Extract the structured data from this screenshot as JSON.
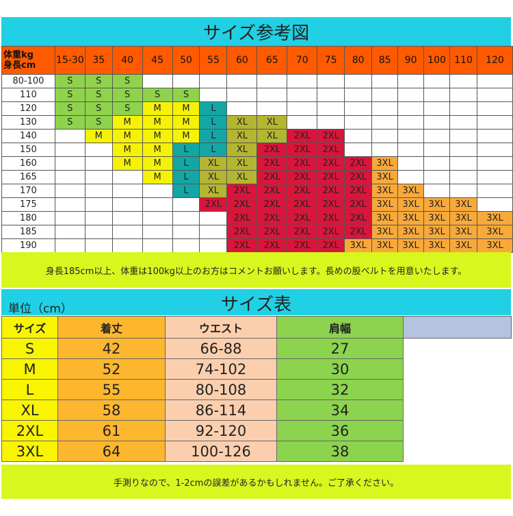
{
  "chart_title": "サイズ参考図",
  "corner": {
    "weight": "体重kg",
    "height": "身長cm"
  },
  "weights": [
    "15-30",
    "35",
    "40",
    "45",
    "50",
    "55",
    "60",
    "65",
    "70",
    "75",
    "80",
    "85",
    "90",
    "100",
    "110",
    "120"
  ],
  "rows": [
    {
      "height": "80-100",
      "cells": [
        "S",
        "S",
        "S",
        "",
        "",
        "",
        "",
        "",
        "",
        "",
        "",
        "",
        "",
        "",
        "",
        ""
      ]
    },
    {
      "height": "110",
      "cells": [
        "S",
        "S",
        "S",
        "S",
        "S",
        "",
        "",
        "",
        "",
        "",
        "",
        "",
        "",
        "",
        "",
        ""
      ]
    },
    {
      "height": "120",
      "cells": [
        "S",
        "S",
        "S",
        "M",
        "M",
        "L",
        "",
        "",
        "",
        "",
        "",
        "",
        "",
        "",
        "",
        ""
      ]
    },
    {
      "height": "130",
      "cells": [
        "S",
        "S",
        "M",
        "M",
        "M",
        "L",
        "XL",
        "XL",
        "",
        "",
        "",
        "",
        "",
        "",
        "",
        ""
      ]
    },
    {
      "height": "140",
      "cells": [
        "",
        "M",
        "M",
        "M",
        "M",
        "L",
        "XL",
        "XL",
        "2XL",
        "2XL",
        "",
        "",
        "",
        "",
        "",
        ""
      ]
    },
    {
      "height": "150",
      "cells": [
        "",
        "",
        "M",
        "M",
        "L",
        "L",
        "XL",
        "2XL",
        "2XL",
        "2XL",
        "",
        "",
        "",
        "",
        "",
        ""
      ]
    },
    {
      "height": "160",
      "cells": [
        "",
        "",
        "M",
        "M",
        "L",
        "XL",
        "XL",
        "2XL",
        "2XL",
        "2XL",
        "2XL",
        "3XL",
        "",
        "",
        "",
        ""
      ]
    },
    {
      "height": "165",
      "cells": [
        "",
        "",
        "",
        "M",
        "L",
        "XL",
        "XL",
        "2XL",
        "2XL",
        "2XL",
        "2XL",
        "3XL",
        "",
        "",
        "",
        ""
      ]
    },
    {
      "height": "170",
      "cells": [
        "",
        "",
        "",
        "",
        "L",
        "XL",
        "2XL",
        "2XL",
        "2XL",
        "2XL",
        "2XL",
        "3XL",
        "3XL",
        "",
        "",
        ""
      ]
    },
    {
      "height": "175",
      "cells": [
        "",
        "",
        "",
        "",
        "",
        "2XL",
        "2XL",
        "2XL",
        "2XL",
        "2XL",
        "2XL",
        "3XL",
        "3XL",
        "3XL",
        "3XL",
        ""
      ]
    },
    {
      "height": "180",
      "cells": [
        "",
        "",
        "",
        "",
        "",
        "",
        "2XL",
        "2XL",
        "2XL",
        "2XL",
        "2XL",
        "3XL",
        "3XL",
        "3XL",
        "3XL",
        "3XL"
      ]
    },
    {
      "height": "185",
      "cells": [
        "",
        "",
        "",
        "",
        "",
        "",
        "2XL",
        "2XL",
        "2XL",
        "2XL",
        "2XL",
        "3XL",
        "3XL",
        "3XL",
        "3XL",
        "3XL"
      ]
    },
    {
      "height": "190",
      "cells": [
        "",
        "",
        "",
        "",
        "",
        "",
        "2XL",
        "2XL",
        "2XL",
        "2XL",
        "3XL",
        "3XL",
        "3XL",
        "3XL",
        "3XL",
        "3XL"
      ]
    }
  ],
  "note1": "身長185cm以上、体重は100kg以上のお方はコメントお願いします。長めの股ベルトを用意いたします。",
  "size_table": {
    "title": "サイズ表",
    "unit": "単位（cm）",
    "headers": [
      "サイズ",
      "着丈",
      "ウエスト",
      "肩幅",
      ""
    ],
    "rows": [
      [
        "S",
        "42",
        "66-88",
        "27"
      ],
      [
        "M",
        "52",
        "74-102",
        "30"
      ],
      [
        "L",
        "55",
        "80-108",
        "32"
      ],
      [
        "XL",
        "58",
        "86-114",
        "34"
      ],
      [
        "2XL",
        "61",
        "92-120",
        "36"
      ],
      [
        "3XL",
        "64",
        "100-126",
        "38"
      ]
    ]
  },
  "note2": "手測りなので、1-2cmの誤差があるかもしれません。ご了承ください。",
  "colors": {
    "S": "#8fd34c",
    "M": "#f5f208",
    "L": "#14a6a4",
    "XL": "#b4b531",
    "2XL": "#d9153b",
    "3XL": "#f8a93a"
  }
}
